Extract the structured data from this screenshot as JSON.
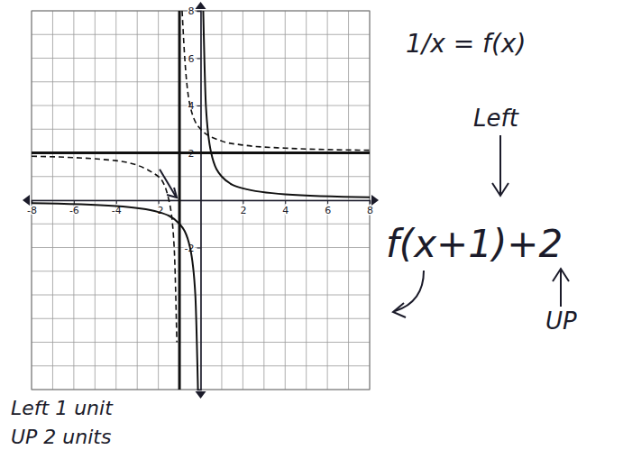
{
  "chart_data": {
    "type": "line",
    "xlim": [
      -8,
      8
    ],
    "ylim": [
      -8,
      8
    ],
    "xticks": [
      -8,
      -6,
      -4,
      -2,
      2,
      4,
      6,
      8
    ],
    "yticks": [
      -2,
      2,
      4,
      6,
      8
    ],
    "grid": true,
    "series": [
      {
        "color": "#111111",
        "line_style": "solid",
        "x": [
          -8,
          -4,
          -2,
          -1,
          -0.5,
          -0.25,
          -0.125,
          null,
          0.125,
          0.25,
          0.5,
          1,
          2,
          4,
          8
        ],
        "values": [
          -0.125,
          -0.25,
          -0.5,
          -1,
          -2,
          -4,
          -8,
          null,
          8,
          4,
          2,
          1,
          0.5,
          0.25,
          0.125
        ]
      },
      {
        "color": "#111111",
        "line_style": "dashed",
        "x": [
          -8,
          -4,
          -2,
          -1.5,
          -1.25,
          -1.125,
          null,
          -0.875,
          -0.75,
          -0.5,
          0,
          1,
          2,
          4,
          8
        ],
        "values": [
          1.86,
          1.67,
          1,
          0,
          -2,
          -6,
          null,
          8,
          6,
          4,
          3,
          2.5,
          2.33,
          2.2,
          2.11
        ]
      },
      {
        "color": "#111111",
        "line_style": "thick",
        "x": [
          -1,
          -1
        ],
        "values": [
          -8,
          8
        ]
      },
      {
        "color": "#111111",
        "line_style": "thick",
        "x": [
          -8,
          8
        ],
        "values": [
          2,
          2
        ]
      }
    ],
    "annotations": [
      "1/x = f(x)",
      "Left",
      "f(x+1)+2",
      "UP",
      "Left 1 unit",
      "UP 2 units"
    ]
  }
}
